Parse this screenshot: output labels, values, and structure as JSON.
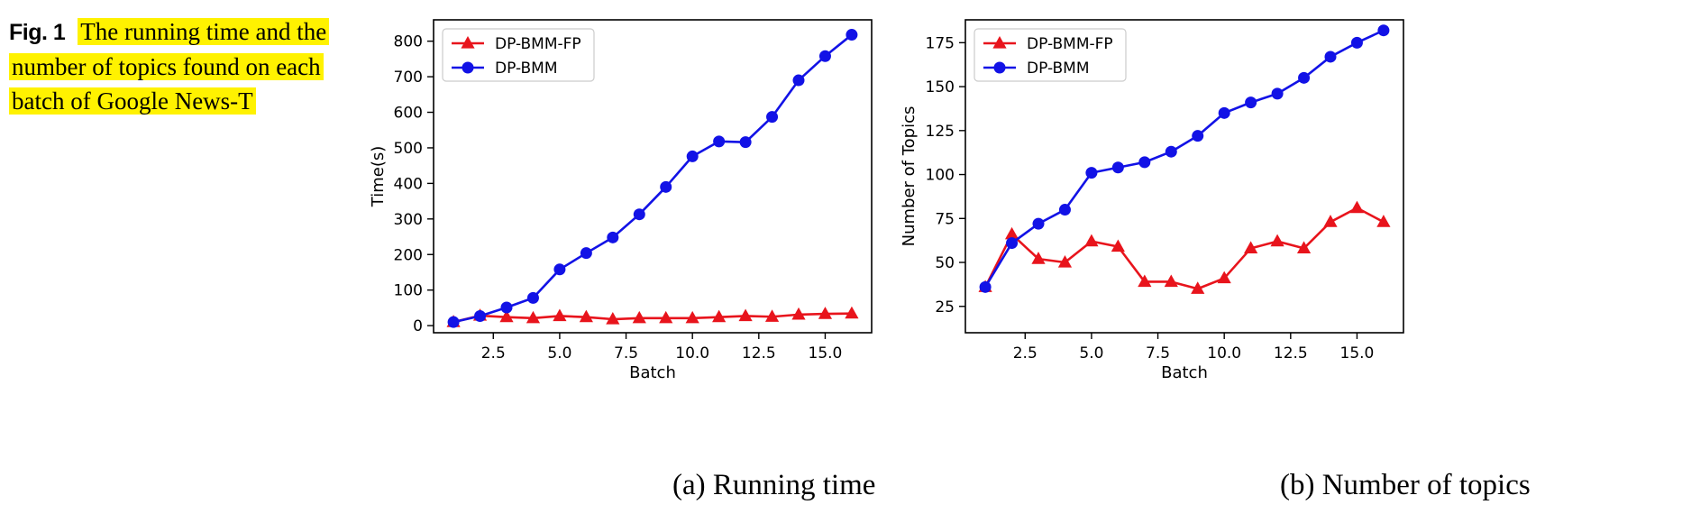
{
  "caption": {
    "label": "Fig. 1",
    "text_line1": "The running time and the",
    "text_line2": "number of topics found on each",
    "text_line3": "batch of Google News-T"
  },
  "colors": {
    "highlight": "#fff200",
    "dp_bmm_fp": "#e8141c",
    "dp_bmm": "#1212e6"
  },
  "chart_data": [
    {
      "type": "line",
      "caption": "(a) Running time",
      "xlabel": "Batch",
      "ylabel": "Time(s)",
      "xlim": [
        0.25,
        16.75
      ],
      "ylim": [
        -20,
        860
      ],
      "xticks": [
        2.5,
        5.0,
        7.5,
        10.0,
        12.5,
        15.0
      ],
      "xtick_labels": [
        "2.5",
        "5.0",
        "7.5",
        "10.0",
        "12.5",
        "15.0"
      ],
      "yticks": [
        0,
        100,
        200,
        300,
        400,
        500,
        600,
        700,
        800
      ],
      "ytick_labels": [
        "0",
        "100",
        "200",
        "300",
        "400",
        "500",
        "600",
        "700",
        "800"
      ],
      "legend": "upper-left",
      "grid": false,
      "x": [
        1,
        2,
        3,
        4,
        5,
        6,
        7,
        8,
        9,
        10,
        11,
        12,
        13,
        14,
        15,
        16
      ],
      "series": [
        {
          "name": "DP-BMM-FP",
          "marker": "triangle",
          "color": "#e8141c",
          "values": [
            10,
            28,
            24,
            21,
            27,
            24,
            18,
            21,
            21,
            21,
            24,
            27,
            25,
            31,
            33,
            34
          ]
        },
        {
          "name": "DP-BMM",
          "marker": "circle",
          "color": "#1212e6",
          "values": [
            10,
            27,
            51,
            78,
            158,
            204,
            248,
            313,
            390,
            476,
            518,
            516,
            587,
            690,
            758,
            818
          ]
        }
      ]
    },
    {
      "type": "line",
      "caption": "(b) Number of topics",
      "xlabel": "Batch",
      "ylabel": "Number of Topics",
      "xlim": [
        0.25,
        16.75
      ],
      "ylim": [
        10,
        188
      ],
      "xticks": [
        2.5,
        5.0,
        7.5,
        10.0,
        12.5,
        15.0
      ],
      "xtick_labels": [
        "2.5",
        "5.0",
        "7.5",
        "10.0",
        "12.5",
        "15.0"
      ],
      "yticks": [
        25,
        50,
        75,
        100,
        125,
        150,
        175
      ],
      "ytick_labels": [
        "25",
        "50",
        "75",
        "100",
        "125",
        "150",
        "175"
      ],
      "legend": "upper-left",
      "grid": false,
      "x": [
        1,
        2,
        3,
        4,
        5,
        6,
        7,
        8,
        9,
        10,
        11,
        12,
        13,
        14,
        15,
        16
      ],
      "series": [
        {
          "name": "DP-BMM-FP",
          "marker": "triangle",
          "color": "#e8141c",
          "values": [
            36,
            66,
            52,
            50,
            62,
            59,
            39,
            39,
            35,
            41,
            58,
            62,
            58,
            73,
            81,
            73
          ]
        },
        {
          "name": "DP-BMM",
          "marker": "circle",
          "color": "#1212e6",
          "values": [
            36,
            61,
            72,
            80,
            101,
            104,
            107,
            113,
            122,
            135,
            141,
            146,
            155,
            167,
            175,
            182
          ]
        }
      ]
    }
  ]
}
